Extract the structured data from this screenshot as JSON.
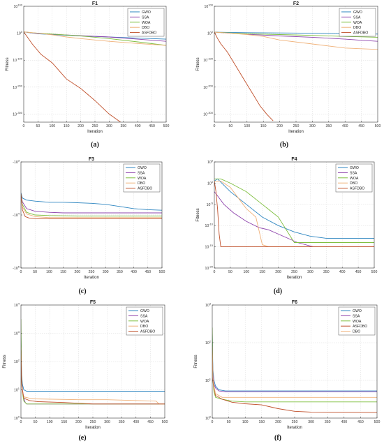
{
  "figure": {
    "colors": {
      "GWO": "#2e86c1",
      "SSA": "#8e44ad",
      "WOA": "#7fbf3f",
      "DBO": "#f0b27a",
      "ASFDBO": "#c0502b"
    }
  },
  "chart_data": [
    {
      "type": "line",
      "title": "F1",
      "xlabel": "Iteration",
      "ylabel": "Fitness",
      "xlim": [
        0,
        500
      ],
      "yscale": "log",
      "ylim_exp": [
        -330,
        100
      ],
      "xticks": [
        0,
        50,
        100,
        150,
        200,
        250,
        300,
        350,
        400,
        450,
        500
      ],
      "yticks": [
        {
          "exp": 100,
          "label": "10"
        },
        {
          "exp": 0,
          "label": "10"
        },
        {
          "exp": -100,
          "label": "10"
        },
        {
          "exp": -200,
          "label": "10"
        },
        {
          "exp": -300,
          "label": "10"
        }
      ],
      "ytick_exps": [
        "100",
        "0",
        "-100",
        "-200",
        "-300"
      ],
      "caption": "(a)",
      "series": [
        {
          "name": "GWO",
          "x": [
            0,
            50,
            100,
            200,
            300,
            400,
            500
          ],
          "y": [
            5,
            -2,
            -5,
            -10,
            -14,
            -18,
            -22
          ]
        },
        {
          "name": "SSA",
          "x": [
            0,
            50,
            100,
            200,
            300,
            400,
            500
          ],
          "y": [
            5,
            -1,
            -4,
            -9,
            -14,
            -22,
            -30
          ]
        },
        {
          "name": "WOA",
          "x": [
            0,
            50,
            100,
            200,
            300,
            400,
            500
          ],
          "y": [
            5,
            0,
            -3,
            -10,
            -20,
            -32,
            -45
          ]
        },
        {
          "name": "DBO",
          "x": [
            0,
            50,
            100,
            150,
            200,
            300,
            400,
            500
          ],
          "y": [
            5,
            0,
            -6,
            -14,
            -20,
            -30,
            -38,
            -45
          ]
        },
        {
          "name": "ASFDBO",
          "x": [
            0,
            10,
            30,
            60,
            100,
            150,
            200,
            250,
            300,
            340
          ],
          "y": [
            5,
            -10,
            -40,
            -78,
            -110,
            -170,
            -205,
            -250,
            -300,
            -330
          ]
        }
      ]
    },
    {
      "type": "line",
      "title": "F2",
      "xlabel": "Iteration",
      "ylabel": "Fitness",
      "xlim": [
        0,
        500
      ],
      "yscale": "log",
      "ylim_exp": [
        -330,
        100
      ],
      "xticks": [
        0,
        50,
        100,
        150,
        200,
        250,
        300,
        350,
        400,
        450,
        500
      ],
      "yticks": [
        {
          "exp": 100,
          "label": "10"
        },
        {
          "exp": 0,
          "label": "10"
        },
        {
          "exp": -100,
          "label": "10"
        },
        {
          "exp": -200,
          "label": "10"
        },
        {
          "exp": -300,
          "label": "10"
        }
      ],
      "ytick_exps": [
        "100",
        "0",
        "-100",
        "-200",
        "-300"
      ],
      "caption": "(b)",
      "series": [
        {
          "name": "GWO",
          "x": [
            0,
            50,
            100,
            200,
            300,
            400,
            500
          ],
          "y": [
            4,
            3,
            2,
            1,
            0,
            -2,
            -3
          ]
        },
        {
          "name": "SSA",
          "x": [
            0,
            50,
            100,
            200,
            300,
            400,
            500
          ],
          "y": [
            4,
            0,
            -4,
            -10,
            -15,
            -22,
            -30
          ]
        },
        {
          "name": "WOA",
          "x": [
            0,
            50,
            100,
            200,
            300,
            400,
            500
          ],
          "y": [
            4,
            1,
            -2,
            -5,
            -8,
            -12,
            -15
          ]
        },
        {
          "name": "DBO",
          "x": [
            0,
            50,
            100,
            150,
            200,
            300,
            400,
            500
          ],
          "y": [
            4,
            0,
            -5,
            -12,
            -25,
            -40,
            -55,
            -60
          ]
        },
        {
          "name": "ASFDBO",
          "x": [
            0,
            10,
            20,
            40,
            60,
            80,
            100,
            120,
            140,
            160,
            180
          ],
          "y": [
            4,
            -20,
            -40,
            -70,
            -110,
            -150,
            -190,
            -230,
            -270,
            -300,
            -325
          ]
        }
      ]
    },
    {
      "type": "line",
      "title": "F3",
      "xlabel": "Iteration",
      "ylabel": "",
      "xlim": [
        0,
        500
      ],
      "yscale": "neglog",
      "ylim_exp": [
        3,
        5
      ],
      "xticks": [
        0,
        50,
        100,
        150,
        200,
        250,
        300,
        350,
        400,
        450,
        500
      ],
      "yticks": [
        {
          "exp": 3,
          "label": "-10"
        },
        {
          "exp": 4,
          "label": "-10"
        },
        {
          "exp": 5,
          "label": "-10"
        }
      ],
      "ytick_exps": [
        "3",
        "4",
        "5"
      ],
      "caption": "(c)",
      "series": [
        {
          "name": "GWO",
          "x": [
            0,
            5,
            20,
            50,
            100,
            150,
            200,
            250,
            300,
            350,
            400,
            450,
            500
          ],
          "y": [
            3.58,
            3.68,
            3.72,
            3.74,
            3.76,
            3.76,
            3.77,
            3.78,
            3.8,
            3.84,
            3.88,
            3.9,
            3.91
          ]
        },
        {
          "name": "SSA",
          "x": [
            0,
            5,
            20,
            50,
            100,
            150,
            500
          ],
          "y": [
            3.6,
            3.75,
            3.88,
            3.93,
            3.95,
            3.96,
            3.96
          ]
        },
        {
          "name": "WOA",
          "x": [
            0,
            5,
            20,
            50,
            100,
            200,
            500
          ],
          "y": [
            3.6,
            3.8,
            3.95,
            4.0,
            4.01,
            4.02,
            4.02
          ]
        },
        {
          "name": "DBO",
          "x": [
            0,
            5,
            20,
            50,
            100,
            500
          ],
          "y": [
            3.6,
            3.85,
            3.98,
            4.03,
            4.05,
            4.05
          ]
        },
        {
          "name": "ASFDBO",
          "x": [
            0,
            5,
            15,
            30,
            60,
            500
          ],
          "y": [
            3.6,
            3.9,
            4.03,
            4.06,
            4.07,
            4.07
          ]
        }
      ]
    },
    {
      "type": "line",
      "title": "F4",
      "xlabel": "Iteration",
      "ylabel": "Fitness",
      "xlim": [
        0,
        500
      ],
      "yscale": "log",
      "ylim_exp": [
        -20,
        5
      ],
      "xticks": [
        0,
        50,
        100,
        150,
        200,
        250,
        300,
        350,
        400,
        450,
        500
      ],
      "yticks": [
        {
          "exp": 5,
          "label": "10"
        },
        {
          "exp": 0,
          "label": "10"
        },
        {
          "exp": -5,
          "label": "10"
        },
        {
          "exp": -10,
          "label": "10"
        },
        {
          "exp": -15,
          "label": "10"
        },
        {
          "exp": -20,
          "label": "10"
        }
      ],
      "ytick_exps": [
        "5",
        "0",
        "-5",
        "-10",
        "-15",
        "-20"
      ],
      "caption": "(d)",
      "series": [
        {
          "name": "GWO",
          "x": [
            0,
            10,
            50,
            100,
            150,
            200,
            250,
            300,
            350,
            380,
            500
          ],
          "y": [
            0.5,
            1,
            -2,
            -5,
            -8,
            -10,
            -11.5,
            -12.5,
            -13,
            -13,
            -13
          ]
        },
        {
          "name": "SSA",
          "x": [
            0,
            10,
            30,
            60,
            100,
            140,
            170,
            200,
            230,
            260,
            300,
            310,
            500
          ],
          "y": [
            -2,
            -3,
            -5,
            -7,
            -9,
            -10.5,
            -11,
            -12,
            -13,
            -14,
            -14.8,
            -15,
            -15
          ]
        },
        {
          "name": "WOA",
          "x": [
            0,
            20,
            50,
            100,
            150,
            200,
            250,
            500
          ],
          "y": [
            1,
            1,
            0,
            -2,
            -5,
            -8,
            -14,
            -14
          ]
        },
        {
          "name": "DBO",
          "x": [
            0,
            20,
            50,
            80,
            100,
            130,
            150,
            170,
            500
          ],
          "y": [
            0.5,
            0.5,
            -1,
            -4,
            -6,
            -8,
            -14.5,
            -15,
            -15
          ]
        },
        {
          "name": "ASFDBO",
          "x": [
            0,
            5,
            10,
            15,
            20,
            500
          ],
          "y": [
            0.5,
            -2,
            -6,
            -12,
            -15,
            -15
          ]
        }
      ]
    },
    {
      "type": "line",
      "title": "F5",
      "xlabel": "Iteration",
      "ylabel": "Fitness",
      "xlim": [
        0,
        500
      ],
      "yscale": "log",
      "ylim_exp": [
        0,
        4
      ],
      "xticks": [
        0,
        50,
        100,
        150,
        200,
        250,
        300,
        350,
        400,
        450,
        500
      ],
      "yticks": [
        {
          "exp": 4,
          "label": "10"
        },
        {
          "exp": 3,
          "label": "10"
        },
        {
          "exp": 2,
          "label": "10"
        },
        {
          "exp": 1,
          "label": "10"
        },
        {
          "exp": 0,
          "label": "10"
        }
      ],
      "ytick_exps": [
        "4",
        "3",
        "2",
        "1",
        "0"
      ],
      "caption": "(e)",
      "series": [
        {
          "name": "GWO",
          "x": [
            0,
            2,
            5,
            10,
            20,
            500
          ],
          "y": [
            3.0,
            1.6,
            1.2,
            1.0,
            0.95,
            0.95
          ]
        },
        {
          "name": "SSA",
          "x": [
            0,
            2,
            5,
            10,
            15,
            20,
            500
          ],
          "y": [
            2.8,
            1.5,
            1.0,
            0.7,
            0.55,
            0.5,
            0.5
          ]
        },
        {
          "name": "WOA",
          "x": [
            0,
            2,
            5,
            10,
            20,
            500
          ],
          "y": [
            3.5,
            1.5,
            0.9,
            0.6,
            0.5,
            0.5
          ]
        },
        {
          "name": "DBO",
          "x": [
            0,
            2,
            5,
            10,
            30,
            50,
            200,
            300,
            470,
            480,
            500
          ],
          "y": [
            2.5,
            1.2,
            0.9,
            0.75,
            0.7,
            0.68,
            0.65,
            0.65,
            0.6,
            0.5,
            0.5
          ]
        },
        {
          "name": "ASFDBO",
          "x": [
            0,
            2,
            5,
            10,
            30,
            60,
            150,
            250,
            500
          ],
          "y": [
            2.4,
            1.3,
            1.0,
            0.7,
            0.62,
            0.58,
            0.55,
            0.5,
            0.5
          ]
        }
      ]
    },
    {
      "type": "line",
      "title": "F6",
      "xlabel": "Iteration",
      "ylabel": "Fitness",
      "xlim": [
        0,
        500
      ],
      "yscale": "log",
      "ylim_exp": [
        0,
        3
      ],
      "xticks": [
        0,
        50,
        100,
        150,
        200,
        250,
        300,
        350,
        400,
        450,
        500
      ],
      "yticks": [
        {
          "exp": 3,
          "label": "10"
        },
        {
          "exp": 2,
          "label": "10"
        },
        {
          "exp": 1,
          "label": "10"
        },
        {
          "exp": 0,
          "label": "10"
        }
      ],
      "ytick_exps": [
        "3",
        "2",
        "1",
        "0"
      ],
      "caption": "(f)",
      "series": [
        {
          "name": "GWO",
          "x": [
            0,
            2,
            5,
            10,
            20,
            40,
            500
          ],
          "y": [
            2.3,
            1.3,
            1.0,
            0.85,
            0.75,
            0.72,
            0.72
          ]
        },
        {
          "name": "SSA",
          "x": [
            0,
            2,
            5,
            10,
            20,
            40,
            500
          ],
          "y": [
            2.0,
            1.2,
            0.9,
            0.8,
            0.72,
            0.7,
            0.7
          ]
        },
        {
          "name": "WOA",
          "x": [
            0,
            2,
            5,
            10,
            30,
            60,
            100,
            500
          ],
          "y": [
            2.4,
            1.0,
            0.7,
            0.55,
            0.5,
            0.45,
            0.43,
            0.43
          ]
        },
        {
          "name": "ASFDBO",
          "x": [
            0,
            2,
            5,
            10,
            30,
            60,
            100,
            150,
            200,
            250,
            300,
            500
          ],
          "y": [
            1.8,
            1.0,
            0.8,
            0.6,
            0.5,
            0.42,
            0.38,
            0.35,
            0.25,
            0.18,
            0.16,
            0.15
          ]
        },
        {
          "name": "DBO",
          "x": [
            0,
            2,
            5,
            10,
            30,
            60,
            500
          ],
          "y": [
            1.9,
            1.1,
            0.85,
            0.65,
            0.55,
            0.55,
            0.55
          ]
        }
      ]
    }
  ]
}
